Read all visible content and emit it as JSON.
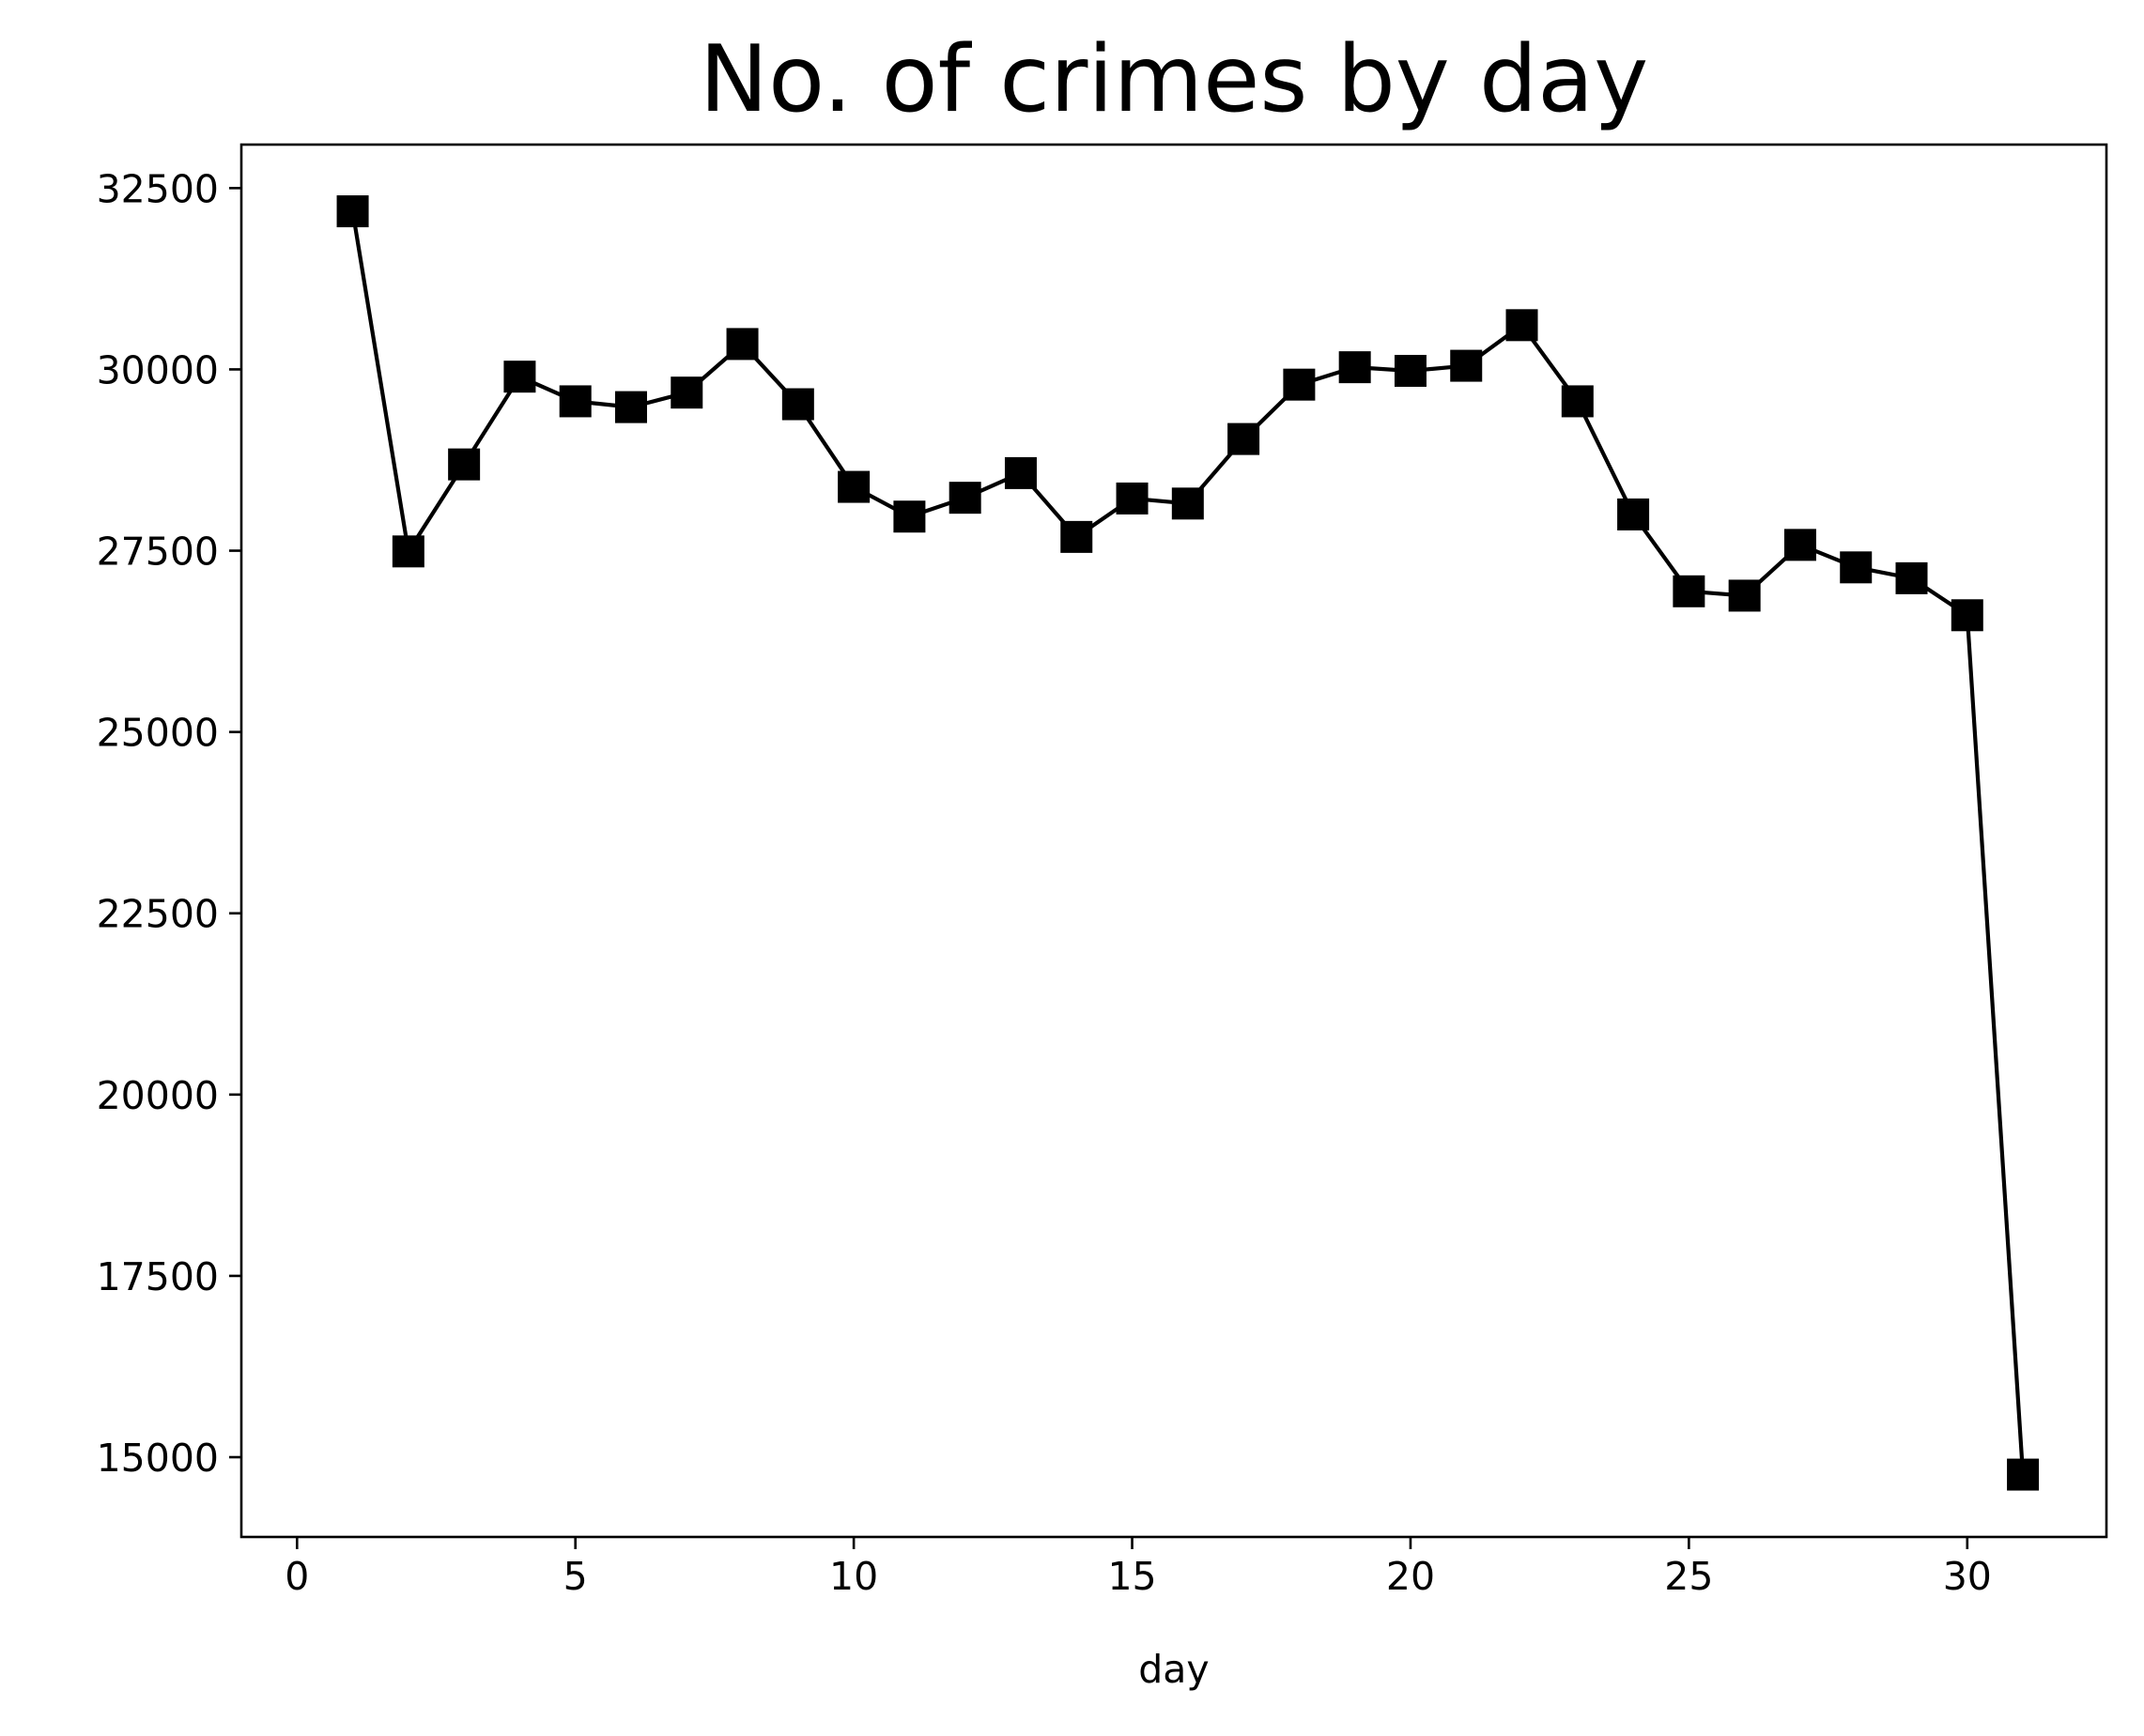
{
  "chart_data": {
    "type": "line",
    "title": "No. of crimes by day",
    "xlabel": "day",
    "ylabel": "",
    "xlim": [
      -1,
      32.5
    ],
    "ylim": [
      13900,
      33100
    ],
    "xticks": [
      0,
      5,
      10,
      15,
      20,
      25,
      30
    ],
    "yticks": [
      15000,
      17500,
      20000,
      22500,
      25000,
      27500,
      30000,
      32500
    ],
    "grid": false,
    "legend": "none",
    "series": [
      {
        "color": "#000000",
        "marker": "square",
        "x": [
          1,
          2,
          3,
          4,
          5,
          6,
          7,
          8,
          9,
          10,
          11,
          12,
          13,
          14,
          15,
          16,
          17,
          18,
          19,
          20,
          21,
          22,
          23,
          24,
          25,
          26,
          27,
          28,
          29,
          30,
          31
        ],
        "values": [
          32180,
          27490,
          28690,
          29900,
          29560,
          29480,
          29680,
          30350,
          29520,
          28380,
          27970,
          28230,
          28570,
          27690,
          28220,
          28150,
          29040,
          29790,
          30030,
          29980,
          30050,
          30610,
          29560,
          28000,
          26940,
          26880,
          27580,
          27270,
          27120,
          26610,
          14760
        ]
      }
    ]
  }
}
